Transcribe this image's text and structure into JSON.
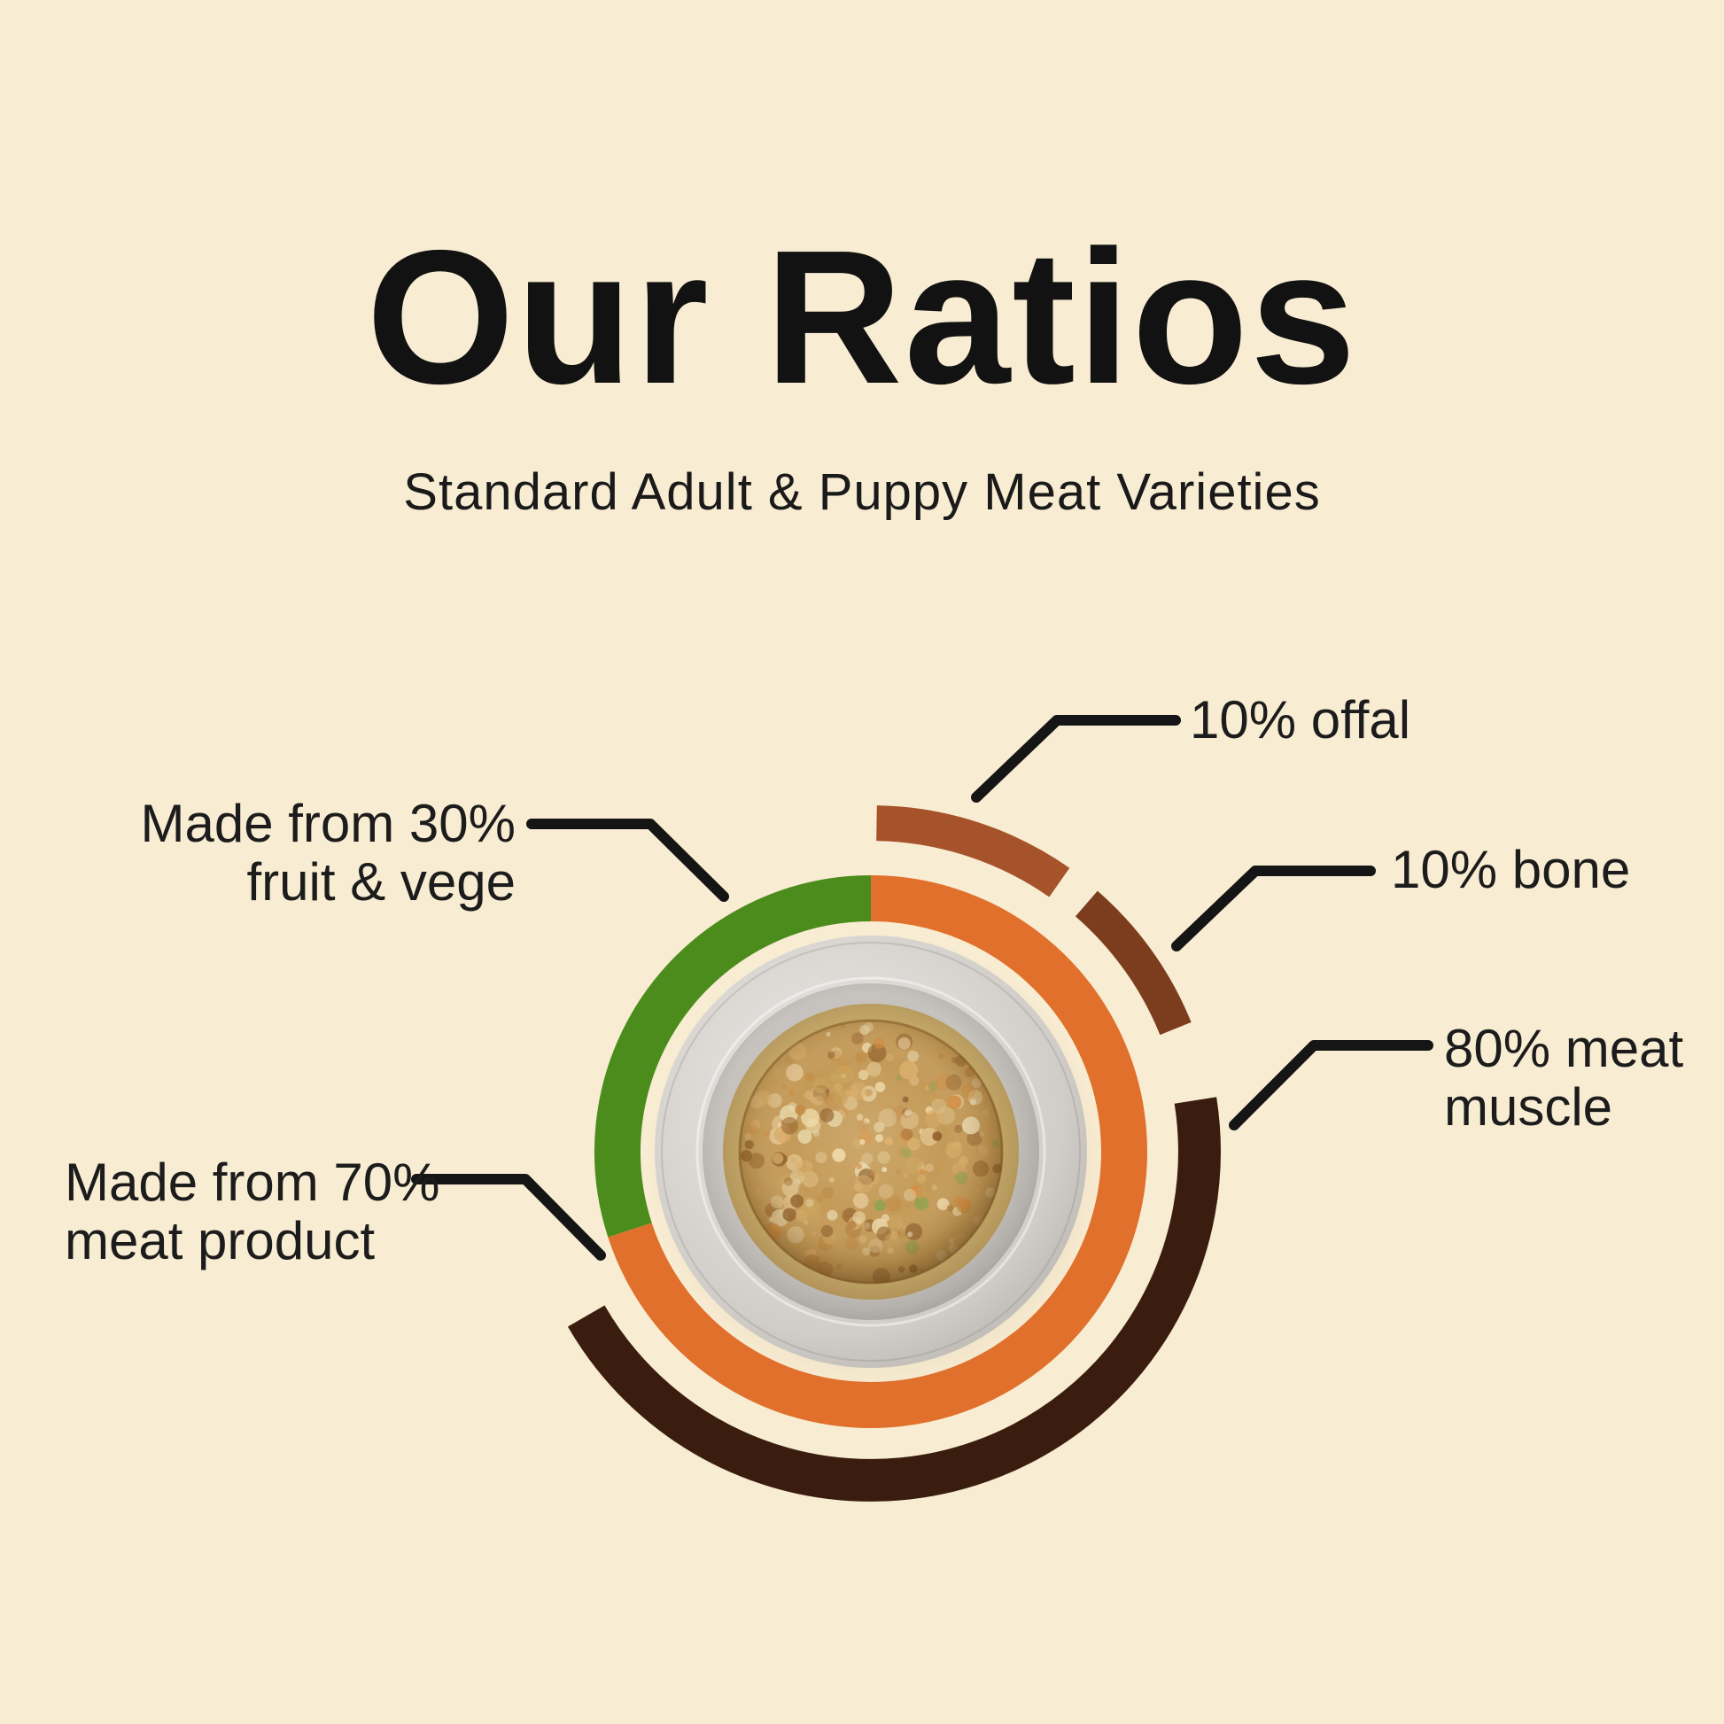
{
  "page": {
    "background": "#F8ECD2"
  },
  "header": {
    "title": "Our Ratios",
    "subtitle": "Standard Adult & Puppy Meat Varieties"
  },
  "callouts": {
    "offal": "10% offal",
    "bone": "10% bone",
    "meat_muscle_line1": "80% meat",
    "meat_muscle_line2": "muscle",
    "fruit_vege_line1": "Made from 30%",
    "fruit_vege_line2": "fruit & vege",
    "meat_product_line1": "Made from 70%",
    "meat_product_line2": "meat product"
  },
  "colors": {
    "background": "#F8ECD2",
    "text": "#1c1c1c",
    "leader_line": "#151515",
    "orange_meat_product": "#E0702C",
    "green_fruit_vege": "#4B8C1D",
    "rust_offal": "#A6532B",
    "brown_bone": "#7C3D1E",
    "dark_meat_muscle": "#3A1D0F"
  },
  "chart_data": {
    "type": "pie",
    "title": "Our Ratios",
    "subtitle": "Standard Adult & Puppy Meat Varieties",
    "legend_position": "callout labels around rings",
    "rings": [
      {
        "name": "bowl-composition-inner-ring",
        "slices": [
          {
            "label": "Made from 70% meat product",
            "value": 70,
            "color": "#E0702C"
          },
          {
            "label": "Made from 30% fruit & vege",
            "value": 30,
            "color": "#4B8C1D"
          }
        ]
      },
      {
        "name": "meat-breakdown-outer-ring",
        "slices": [
          {
            "label": "10% offal",
            "value": 10,
            "color": "#A6532B"
          },
          {
            "label": "10% bone",
            "value": 10,
            "color": "#7C3D1E"
          },
          {
            "label": "80% meat muscle",
            "value": 80,
            "color": "#3A1D0F"
          }
        ]
      }
    ],
    "center_image": "bowl of raw minced pet food"
  }
}
